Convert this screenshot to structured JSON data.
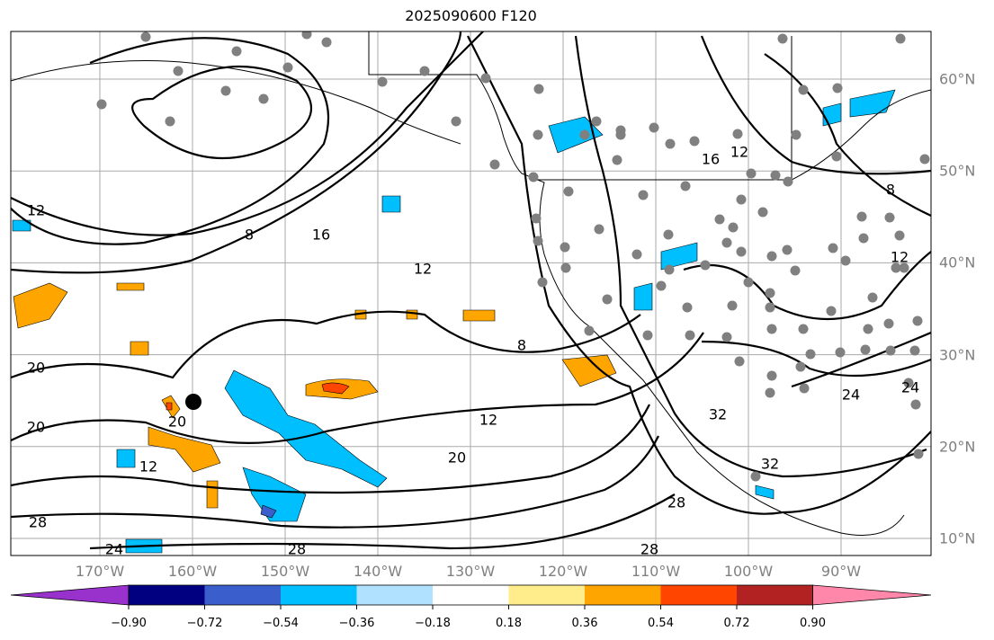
{
  "title": "2025090600 F120",
  "longitude_labels": [
    "170°W",
    "160°W",
    "150°W",
    "140°W",
    "130°W",
    "120°W",
    "110°W",
    "100°W",
    "90°W"
  ],
  "latitude_labels": [
    "60°N",
    "50°N",
    "40°N",
    "30°N",
    "20°N",
    "10°N"
  ],
  "colorbar": {
    "tick_labels": [
      "−0.90",
      "−0.72",
      "−0.54",
      "−0.36",
      "−0.18",
      "0.18",
      "0.36",
      "0.54",
      "0.72",
      "0.90"
    ],
    "colors": [
      "#9932cc",
      "#000080",
      "#3a5fcd",
      "#00bfff",
      "#b0e2ff",
      "#ffffff",
      "#ffec8b",
      "#ffa500",
      "#ff4500",
      "#b22222",
      "#ff88aa"
    ]
  },
  "contour_labels": [
    "12",
    "8",
    "16",
    "16",
    "12",
    "8",
    "12",
    "8",
    "16",
    "12",
    "20",
    "20",
    "12",
    "28",
    "24",
    "28",
    "20",
    "12",
    "28",
    "28",
    "32",
    "32",
    "24",
    "24",
    "20"
  ]
}
